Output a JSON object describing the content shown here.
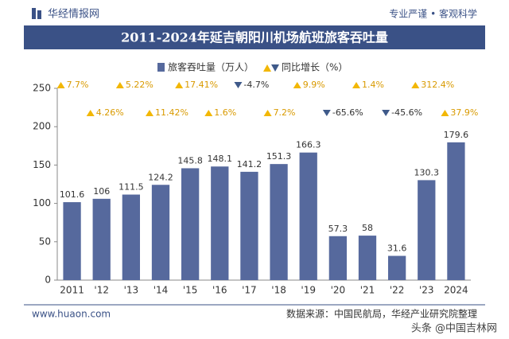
{
  "header": {
    "brand": "华经情报网",
    "slogan": "专业严谨 • 客观科学"
  },
  "chart_data": {
    "type": "bar",
    "title": "2011-2024年延吉朝阳川机场航班旅客吞吐量",
    "categories": [
      "2011",
      "'12",
      "'13",
      "'14",
      "'15",
      "'16",
      "'17",
      "'18",
      "'19",
      "'20",
      "'21",
      "'22",
      "'23",
      "2024"
    ],
    "series": [
      {
        "name": "旅客吞吐量（万人）",
        "color": "#56699d",
        "values": [
          101.6,
          106,
          111.5,
          124.2,
          145.8,
          148.1,
          141.2,
          151.3,
          166.3,
          57.3,
          58,
          31.6,
          130.3,
          179.6
        ]
      },
      {
        "name": "同比增长（%）",
        "color": "#f2b705",
        "negative_color": "#3f5a8a",
        "values": [
          7.7,
          4.26,
          5.22,
          11.42,
          17.41,
          1.6,
          -4.7,
          7.2,
          9.9,
          -65.6,
          1.4,
          -45.6,
          312.4,
          37.9
        ],
        "value_labels": [
          "7.7%",
          "4.26%",
          "5.22%",
          "11.42%",
          "17.41%",
          "1.6%",
          "-4.7%",
          "7.2%",
          "9.9%",
          "-65.6%",
          "1.4%",
          "-45.6%",
          "312.4%",
          "37.9%"
        ]
      }
    ],
    "ylim": [
      0,
      250
    ],
    "yticks": [
      0,
      50,
      100,
      150,
      200,
      250
    ],
    "grid": false
  },
  "footer": {
    "website": "www.huaon.com",
    "source": "数据来源：中国民航局，华经产业研究院整理",
    "watermark": "头条 @中国吉林网"
  }
}
